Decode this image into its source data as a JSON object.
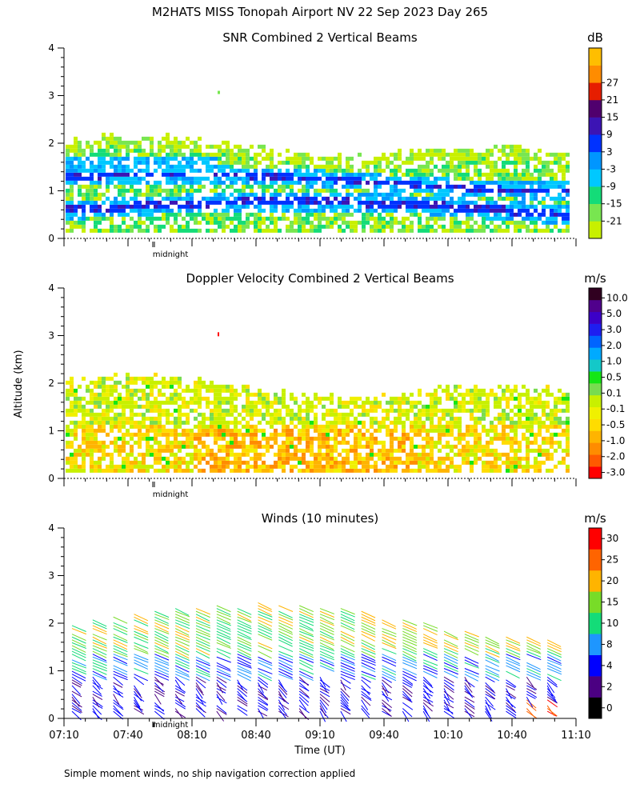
{
  "figure_title": "M2HATS MISS Tonopah Airport NV  22 Sep 2023 Day 265",
  "y_axis_label": "Altitude (km)",
  "x_axis_label": "Time (UT)",
  "footer_note": "Simple moment winds, no ship navigation correction applied",
  "midnight_label": "midnight",
  "chart_data": [
    {
      "type": "heatmap",
      "title": "SNR Combined 2 Vertical Beams",
      "ylabel": "Altitude (km)",
      "ylim": [
        0,
        4
      ],
      "y_ticks": [
        "0",
        "1",
        "2",
        "3",
        "4"
      ],
      "xlim": [
        "07:10",
        "11:10"
      ],
      "colorbar": {
        "unit": "dB",
        "colors": [
          "#c8f000",
          "#78e650",
          "#14dc78",
          "#00c8ff",
          "#0096ff",
          "#0032ff",
          "#3c14b4",
          "#50006e",
          "#e61e00",
          "#ff8c00",
          "#ffbe00"
        ],
        "tick_labels": [
          "-21",
          "-15",
          "-9",
          "-3",
          "3",
          "9",
          "15",
          "21",
          "27"
        ]
      },
      "layer_tops_km": {
        "main_echo": 2.0,
        "strong_band": 1.6,
        "max_echo": 2.2
      }
    },
    {
      "type": "heatmap",
      "title": "Doppler Velocity Combined 2 Vertical Beams",
      "ylabel": "Altitude (km)",
      "ylim": [
        0,
        4
      ],
      "y_ticks": [
        "0",
        "1",
        "2",
        "3",
        "4"
      ],
      "xlim": [
        "07:10",
        "11:10"
      ],
      "colorbar": {
        "unit": "m/s",
        "colors": [
          "#ff0000",
          "#ff5a00",
          "#ff8c00",
          "#ffb400",
          "#ffdc00",
          "#f0f000",
          "#c8f000",
          "#78dc50",
          "#14e614",
          "#14c8c8",
          "#00aaff",
          "#0064ff",
          "#1e1ef0",
          "#3c00c8",
          "#50008c",
          "#300020"
        ],
        "tick_labels": [
          "-3.0",
          "-2.0",
          "-1.0",
          "-0.5",
          "-0.1",
          "0.1",
          "0.5",
          "1.0",
          "2.0",
          "3.0",
          "5.0",
          "10.0"
        ]
      }
    },
    {
      "type": "wind_barbs",
      "title": "Winds (10 minutes)",
      "ylabel": "Altitude (km)",
      "ylim": [
        0,
        4
      ],
      "y_ticks": [
        "0",
        "1",
        "2",
        "3",
        "4"
      ],
      "x_ticks": [
        "07:10",
        "07:40",
        "08:10",
        "08:40",
        "09:10",
        "09:40",
        "10:10",
        "10:40",
        "11:10"
      ],
      "xlim": [
        "07:10",
        "11:10"
      ],
      "interval_minutes": 10,
      "profile_count": 24,
      "colorbar": {
        "unit": "m/s",
        "colors": [
          "#000000",
          "#4b0082",
          "#0000ff",
          "#1e96ff",
          "#14dc78",
          "#78dc28",
          "#ffb400",
          "#ff6400",
          "#ff0000"
        ],
        "tick_labels": [
          "0",
          "2",
          "4",
          "8",
          "10",
          "15",
          "20",
          "25",
          "30"
        ]
      }
    }
  ]
}
